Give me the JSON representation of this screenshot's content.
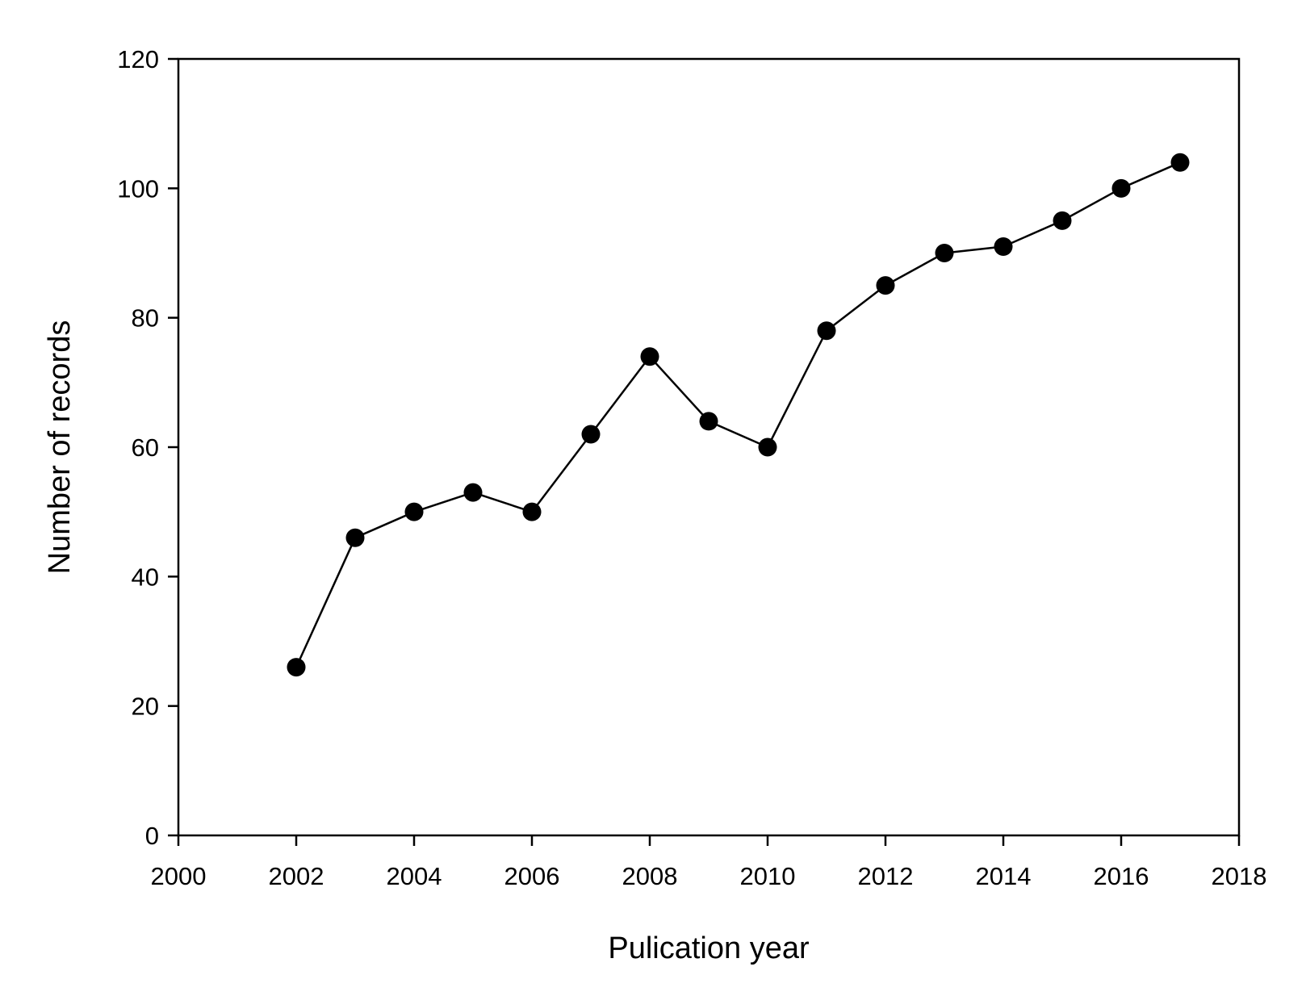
{
  "chart_data": {
    "type": "line",
    "title": "",
    "xlabel": "Pulication year",
    "ylabel": "Number of records",
    "xlim": [
      2000,
      2018
    ],
    "ylim": [
      0,
      120
    ],
    "x_ticks": [
      2000,
      2002,
      2004,
      2006,
      2008,
      2010,
      2012,
      2014,
      2016,
      2018
    ],
    "y_ticks": [
      0,
      20,
      40,
      60,
      80,
      100,
      120
    ],
    "x_tick_labels": [
      "2000",
      "2002",
      "2004",
      "2006",
      "2008",
      "2010",
      "2012",
      "2014",
      "2016",
      "2018"
    ],
    "y_tick_labels": [
      "0",
      "20",
      "40",
      "60",
      "80",
      "100",
      "120"
    ],
    "grid": false,
    "legend": "none",
    "marker": "filled-circle",
    "series": [
      {
        "color": "#000000",
        "x": [
          2002,
          2003,
          2004,
          2005,
          2006,
          2007,
          2008,
          2009,
          2010,
          2011,
          2012,
          2013,
          2014,
          2015,
          2016,
          2017
        ],
        "y": [
          26,
          46,
          50,
          53,
          50,
          62,
          74,
          64,
          60,
          78,
          85,
          90,
          91,
          95,
          100,
          104
        ]
      }
    ]
  }
}
